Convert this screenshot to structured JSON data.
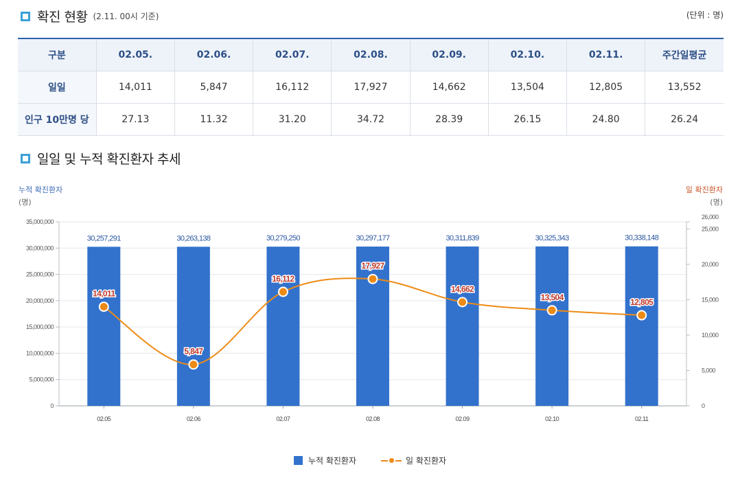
{
  "section1": {
    "title": "확진 현황",
    "note": "(2.11. 00시 기준)",
    "unit": "(단위 : 명)"
  },
  "table": {
    "headers": [
      "구분",
      "02.05.",
      "02.06.",
      "02.07.",
      "02.08.",
      "02.09.",
      "02.10.",
      "02.11.",
      "주간일평균"
    ],
    "rows": [
      [
        "일일",
        "14,011",
        "5,847",
        "16,112",
        "17,927",
        "14,662",
        "13,504",
        "12,805",
        "13,552"
      ],
      [
        "인구 10만명 당",
        "27.13",
        "11.32",
        "31.20",
        "34.72",
        "28.39",
        "26.15",
        "24.80",
        "26.24"
      ]
    ]
  },
  "section2": {
    "title": "일일 및 누적 확진환자 추세"
  },
  "colors": {
    "bar": "#3372cc",
    "line": "#ee8b16",
    "left_title": "#3b6cb7",
    "right_title": "#c9562a",
    "label_red": "#c0392b"
  },
  "chart_data": {
    "type": "bar",
    "categories": [
      "02.05",
      "02.06",
      "02.07",
      "02.08",
      "02.09",
      "02.10",
      "02.11"
    ],
    "series": [
      {
        "name": "누적 확진환자",
        "type": "bar",
        "axis": "left",
        "values": [
          30257291,
          30263138,
          30279250,
          30297177,
          30311839,
          30325343,
          30338148
        ],
        "labels": [
          "30,257,291",
          "30,263,138",
          "30,279,250",
          "30,297,177",
          "30,311,839",
          "30,325,343",
          "30,338,148"
        ]
      },
      {
        "name": "일 확진환자",
        "type": "line",
        "axis": "right",
        "values": [
          14011,
          5847,
          16112,
          17927,
          14662,
          13504,
          12805
        ],
        "labels": [
          "14,011",
          "5,847",
          "16,112",
          "17,927",
          "14,662",
          "13,504",
          "12,805"
        ]
      }
    ],
    "y_left": {
      "title": "누적 확진환자",
      "unit": "(명)",
      "range": [
        0,
        35000000
      ],
      "ticks": [
        0,
        5000000,
        10000000,
        15000000,
        20000000,
        25000000,
        30000000,
        35000000
      ],
      "tick_labels": [
        "0",
        "5,000,000",
        "10,000,000",
        "15,000,000",
        "20,000,000",
        "25,000,000",
        "30,000,000",
        "35,000,000"
      ]
    },
    "y_right": {
      "title": "일 확진환자",
      "unit": "(명)",
      "range": [
        0,
        26000
      ],
      "ticks": [
        0,
        5000,
        10000,
        15000,
        20000,
        25000,
        26000
      ],
      "tick_labels": [
        "0",
        "5,000",
        "10,000",
        "15,000",
        "20,000",
        "25,000",
        "26,000"
      ]
    },
    "grid": true,
    "legend": "bottom"
  }
}
